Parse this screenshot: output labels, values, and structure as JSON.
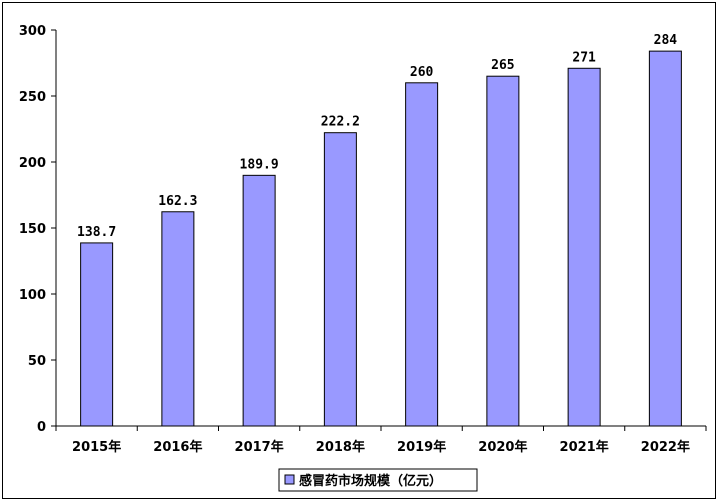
{
  "chart_data": {
    "type": "bar",
    "categories": [
      "2015年",
      "2016年",
      "2017年",
      "2018年",
      "2019年",
      "2020年",
      "2021年",
      "2022年"
    ],
    "values": [
      138.7,
      162.3,
      189.9,
      222.2,
      260,
      265,
      271,
      284
    ],
    "value_labels": [
      "138.7",
      "162.3",
      "189.9",
      "222.2",
      "260",
      "265",
      "271",
      "284"
    ],
    "y_ticks": [
      0,
      50,
      100,
      150,
      200,
      250,
      300
    ],
    "ylim": [
      0,
      300
    ],
    "series": [
      {
        "name": "感冒药市场规模（亿元）"
      }
    ],
    "legend_position": "bottom",
    "grid": false,
    "colors": {
      "bar_fill": "#9999FF",
      "bar_stroke": "#000000"
    }
  }
}
